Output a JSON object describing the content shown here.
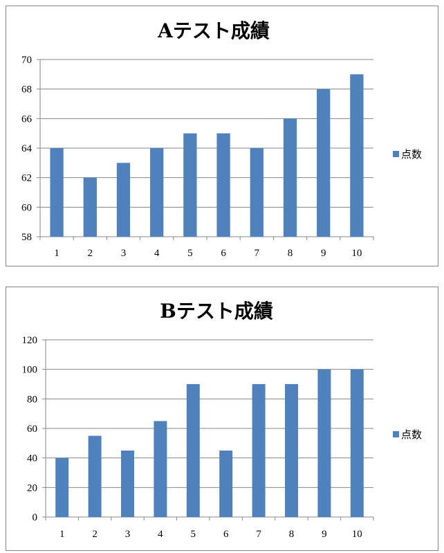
{
  "chart_data": [
    {
      "type": "bar",
      "title": "Aテスト成績",
      "categories": [
        "1",
        "2",
        "3",
        "4",
        "5",
        "6",
        "7",
        "8",
        "9",
        "10"
      ],
      "series": [
        {
          "name": "点数",
          "values": [
            64,
            62,
            63,
            64,
            65,
            65,
            64,
            66,
            68,
            69
          ]
        }
      ],
      "ylim": [
        58,
        70
      ],
      "yticks": [
        "58",
        "60",
        "62",
        "64",
        "66",
        "68",
        "70"
      ],
      "xlabel": "",
      "ylabel": "",
      "grid": true,
      "legend": "right",
      "bar_color": "#4f81bd"
    },
    {
      "type": "bar",
      "title": "Bテスト成績",
      "categories": [
        "1",
        "2",
        "3",
        "4",
        "5",
        "6",
        "7",
        "8",
        "9",
        "10"
      ],
      "series": [
        {
          "name": "点数",
          "values": [
            40,
            55,
            45,
            65,
            90,
            45,
            90,
            90,
            100,
            100
          ]
        }
      ],
      "ylim": [
        0,
        120
      ],
      "yticks": [
        "0",
        "20",
        "40",
        "60",
        "80",
        "100",
        "120"
      ],
      "xlabel": "",
      "ylabel": "",
      "grid": true,
      "legend": "right",
      "bar_color": "#4f81bd"
    }
  ]
}
